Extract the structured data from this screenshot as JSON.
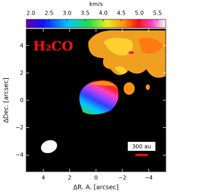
{
  "chart_data": {
    "type": "image",
    "annotation": "H₂CO",
    "scale_bar_label": "300 au",
    "colorbar": {
      "label": "km/s",
      "lim": [
        1.87,
        5.73
      ],
      "ticks": [
        {
          "value": 2,
          "label": "2.0"
        },
        2.5,
        {
          "value": 3,
          "label": "3.0"
        },
        3.5,
        {
          "value": 4,
          "label": "4.0"
        },
        4.5,
        {
          "value": 5,
          "label": "5.0"
        },
        5.5
      ]
    },
    "xlabel": "ΔR. A. [arcsec]",
    "ylabel": "ΔDec. [arcsec]",
    "xlim": [
      5.3,
      -5.3
    ],
    "ylim": [
      -5.2,
      5.2
    ],
    "xticks": [
      4,
      2,
      0,
      {
        "value": -2,
        "label": "−2"
      },
      {
        "value": -4,
        "label": "−4"
      }
    ],
    "yticks": [
      {
        "value": -4,
        "label": "−4"
      },
      {
        "value": -2,
        "label": "−2"
      },
      0,
      2,
      4
    ]
  }
}
